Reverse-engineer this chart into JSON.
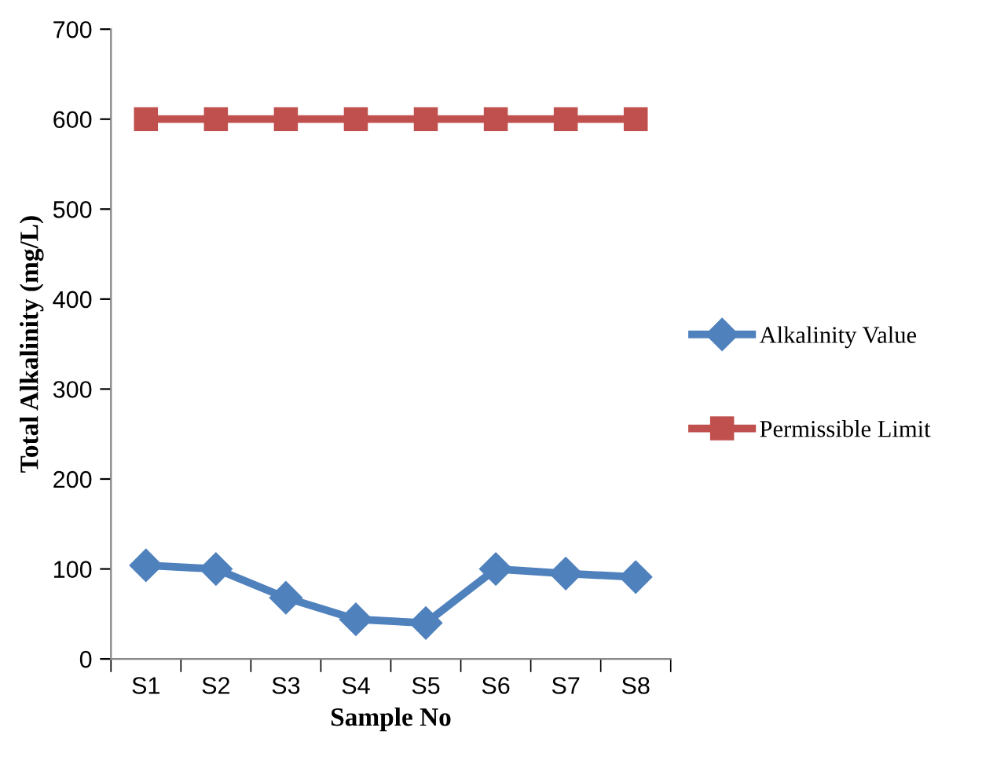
{
  "chart_data": {
    "type": "line",
    "xlabel": "Sample No",
    "ylabel": "Total Alkalinity (mg/L)",
    "categories": [
      "S1",
      "S2",
      "S3",
      "S4",
      "S5",
      "S6",
      "S7",
      "S8"
    ],
    "series": [
      {
        "name": "Alkalinity Value",
        "color": "#4f81bd",
        "marker": "diamond",
        "values": [
          104,
          100,
          68,
          44,
          40,
          100,
          95,
          91
        ]
      },
      {
        "name": "Permissible Limit",
        "color": "#c0504d",
        "marker": "square",
        "values": [
          600,
          600,
          600,
          600,
          600,
          600,
          600,
          600
        ]
      }
    ],
    "ylim": [
      0,
      700
    ],
    "yticks": [
      0,
      100,
      200,
      300,
      400,
      500,
      600,
      700
    ],
    "grid": false,
    "legend": "right",
    "line_style": "solid"
  }
}
